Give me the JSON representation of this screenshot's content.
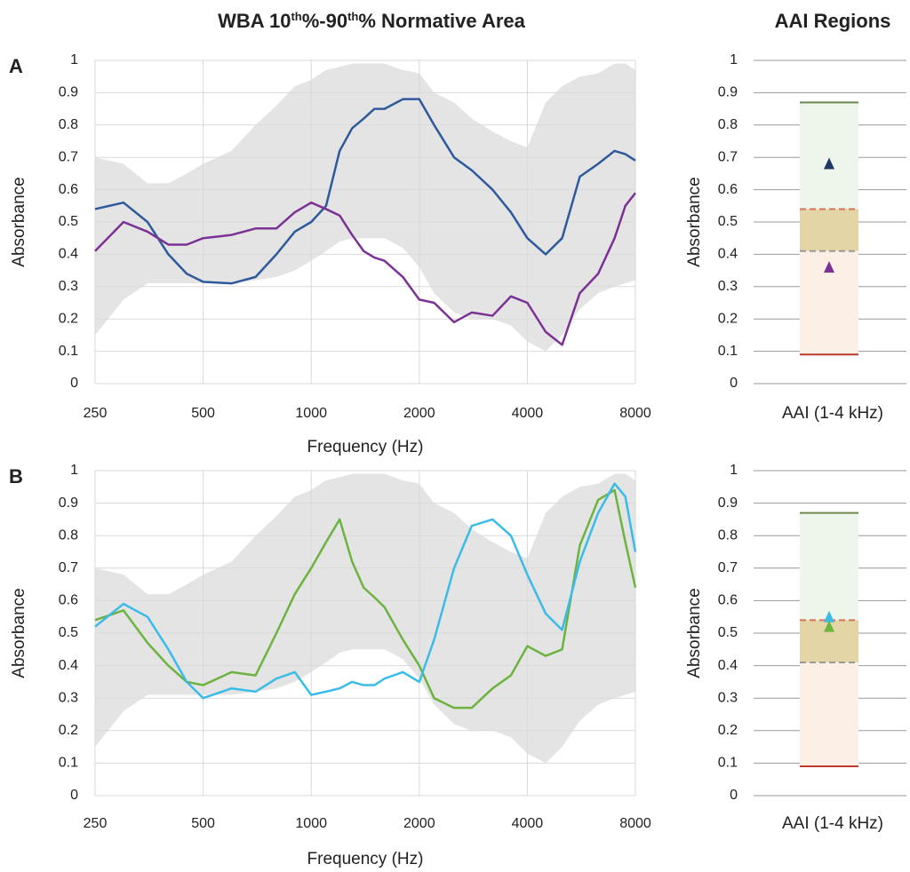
{
  "chart_data": [
    {
      "type": "line",
      "panel_label": "A",
      "title_parts": [
        "WBA 10",
        "th",
        "%-90",
        "th",
        "% Normative Area"
      ],
      "x_label": "Frequency (Hz)",
      "y_label": "Absorbance",
      "x": [
        250,
        300,
        350,
        400,
        450,
        500,
        600,
        700,
        800,
        900,
        1000,
        1100,
        1200,
        1300,
        1400,
        1500,
        1600,
        1800,
        2000,
        2200,
        2500,
        2800,
        3200,
        3600,
        4000,
        4500,
        5000,
        5600,
        6300,
        7000,
        7500,
        8000
      ],
      "xlim": [
        250,
        8000
      ],
      "log_x": true,
      "xticks": [
        250,
        500,
        1000,
        2000,
        4000,
        8000
      ],
      "ylim": [
        0,
        1
      ],
      "yticks": [
        0,
        0.1,
        0.2,
        0.3,
        0.4,
        0.5,
        0.6,
        0.7,
        0.8,
        0.9,
        1
      ],
      "grid": true,
      "band": {
        "color": "#e4e4e4",
        "upper": [
          0.7,
          0.68,
          0.62,
          0.62,
          0.65,
          0.68,
          0.72,
          0.8,
          0.86,
          0.92,
          0.94,
          0.97,
          0.98,
          0.99,
          0.99,
          0.99,
          0.99,
          0.97,
          0.96,
          0.9,
          0.87,
          0.82,
          0.78,
          0.75,
          0.73,
          0.87,
          0.92,
          0.95,
          0.96,
          0.99,
          0.99,
          0.97
        ],
        "lower": [
          0.15,
          0.26,
          0.31,
          0.31,
          0.31,
          0.31,
          0.31,
          0.32,
          0.33,
          0.35,
          0.38,
          0.41,
          0.44,
          0.45,
          0.45,
          0.45,
          0.45,
          0.42,
          0.36,
          0.28,
          0.22,
          0.2,
          0.2,
          0.18,
          0.13,
          0.1,
          0.15,
          0.23,
          0.28,
          0.3,
          0.31,
          0.32
        ]
      },
      "series": [
        {
          "color": "#2e5a9c",
          "values": [
            0.54,
            0.56,
            0.5,
            0.4,
            0.34,
            0.315,
            0.31,
            0.33,
            0.4,
            0.47,
            0.5,
            0.55,
            0.72,
            0.79,
            0.82,
            0.85,
            0.85,
            0.88,
            0.88,
            0.8,
            0.7,
            0.66,
            0.6,
            0.53,
            0.45,
            0.4,
            0.45,
            0.64,
            0.68,
            0.72,
            0.71,
            0.69
          ]
        },
        {
          "color": "#7b3294",
          "values": [
            0.41,
            0.5,
            0.47,
            0.43,
            0.43,
            0.45,
            0.46,
            0.48,
            0.48,
            0.53,
            0.56,
            0.54,
            0.52,
            0.46,
            0.41,
            0.39,
            0.38,
            0.33,
            0.26,
            0.25,
            0.19,
            0.22,
            0.21,
            0.27,
            0.25,
            0.16,
            0.12,
            0.28,
            0.34,
            0.45,
            0.55,
            0.59
          ]
        }
      ]
    },
    {
      "type": "regions",
      "title": "AAI Regions",
      "category": "AAI (1-4 kHz)",
      "y_label": "Absorbance",
      "ylim": [
        0,
        1
      ],
      "yticks": [
        0,
        0.1,
        0.2,
        0.3,
        0.4,
        0.5,
        0.6,
        0.7,
        0.8,
        0.9,
        1
      ],
      "grid": true,
      "regions": [
        {
          "lower": 0.54,
          "upper": 0.87,
          "color": "#eef5ea"
        },
        {
          "lower": 0.41,
          "upper": 0.54,
          "color": "#e3d5a6"
        },
        {
          "lower": 0.09,
          "upper": 0.41,
          "color": "#fcefe6"
        }
      ],
      "lines": [
        {
          "value": 0.87,
          "color": "#6b8a4e",
          "dashed": false
        },
        {
          "value": 0.54,
          "color": "#d9705a",
          "dashed": true
        },
        {
          "value": 0.41,
          "color": "#999999",
          "dashed": true
        },
        {
          "value": 0.09,
          "color": "#c0392b",
          "dashed": false
        }
      ],
      "points": [
        {
          "value": 0.68,
          "color": "#1f3864"
        },
        {
          "value": 0.36,
          "color": "#7b3294"
        }
      ]
    },
    {
      "type": "line",
      "panel_label": "B",
      "x_label": "Frequency (Hz)",
      "y_label": "Absorbance",
      "x": [
        250,
        300,
        350,
        400,
        450,
        500,
        600,
        700,
        800,
        900,
        1000,
        1100,
        1200,
        1300,
        1400,
        1500,
        1600,
        1800,
        2000,
        2200,
        2500,
        2800,
        3200,
        3600,
        4000,
        4500,
        5000,
        5600,
        6300,
        7000,
        7500,
        8000
      ],
      "xlim": [
        250,
        8000
      ],
      "log_x": true,
      "xticks": [
        250,
        500,
        1000,
        2000,
        4000,
        8000
      ],
      "ylim": [
        0,
        1
      ],
      "yticks": [
        0,
        0.1,
        0.2,
        0.3,
        0.4,
        0.5,
        0.6,
        0.7,
        0.8,
        0.9,
        1
      ],
      "grid": true,
      "band": {
        "color": "#e4e4e4",
        "upper": [
          0.7,
          0.68,
          0.62,
          0.62,
          0.65,
          0.68,
          0.72,
          0.8,
          0.86,
          0.92,
          0.94,
          0.97,
          0.98,
          0.99,
          0.99,
          0.99,
          0.99,
          0.97,
          0.96,
          0.9,
          0.87,
          0.82,
          0.78,
          0.75,
          0.73,
          0.87,
          0.92,
          0.95,
          0.96,
          0.99,
          0.99,
          0.97
        ],
        "lower": [
          0.15,
          0.26,
          0.31,
          0.31,
          0.31,
          0.31,
          0.31,
          0.32,
          0.33,
          0.35,
          0.38,
          0.41,
          0.44,
          0.45,
          0.45,
          0.45,
          0.45,
          0.42,
          0.36,
          0.28,
          0.22,
          0.2,
          0.2,
          0.18,
          0.13,
          0.1,
          0.15,
          0.23,
          0.28,
          0.3,
          0.31,
          0.32
        ]
      },
      "series": [
        {
          "color": "#6cb33f",
          "values": [
            0.54,
            0.57,
            0.47,
            0.4,
            0.35,
            0.34,
            0.38,
            0.37,
            0.5,
            0.62,
            0.7,
            0.78,
            0.85,
            0.72,
            0.64,
            0.61,
            0.58,
            0.48,
            0.4,
            0.3,
            0.27,
            0.27,
            0.33,
            0.37,
            0.46,
            0.43,
            0.45,
            0.77,
            0.91,
            0.94,
            0.78,
            0.64
          ]
        },
        {
          "color": "#3bbbe8",
          "values": [
            0.52,
            0.59,
            0.55,
            0.45,
            0.35,
            0.3,
            0.33,
            0.32,
            0.36,
            0.38,
            0.31,
            0.32,
            0.33,
            0.35,
            0.34,
            0.34,
            0.36,
            0.38,
            0.35,
            0.48,
            0.7,
            0.83,
            0.85,
            0.8,
            0.68,
            0.56,
            0.51,
            0.72,
            0.87,
            0.96,
            0.92,
            0.75
          ]
        }
      ]
    },
    {
      "type": "regions",
      "category": "AAI (1-4 kHz)",
      "y_label": "Absorbance",
      "ylim": [
        0,
        1
      ],
      "yticks": [
        0,
        0.1,
        0.2,
        0.3,
        0.4,
        0.5,
        0.6,
        0.7,
        0.8,
        0.9,
        1
      ],
      "grid": true,
      "regions": [
        {
          "lower": 0.54,
          "upper": 0.87,
          "color": "#eef5ea"
        },
        {
          "lower": 0.41,
          "upper": 0.54,
          "color": "#e3d5a6"
        },
        {
          "lower": 0.09,
          "upper": 0.41,
          "color": "#fcefe6"
        }
      ],
      "lines": [
        {
          "value": 0.87,
          "color": "#6b8a4e",
          "dashed": false
        },
        {
          "value": 0.54,
          "color": "#d9705a",
          "dashed": true
        },
        {
          "value": 0.41,
          "color": "#999999",
          "dashed": true
        },
        {
          "value": 0.09,
          "color": "#c0392b",
          "dashed": false
        }
      ],
      "points": [
        {
          "value": 0.55,
          "color": "#3bbbe8"
        },
        {
          "value": 0.52,
          "color": "#6cb33f"
        }
      ]
    }
  ]
}
